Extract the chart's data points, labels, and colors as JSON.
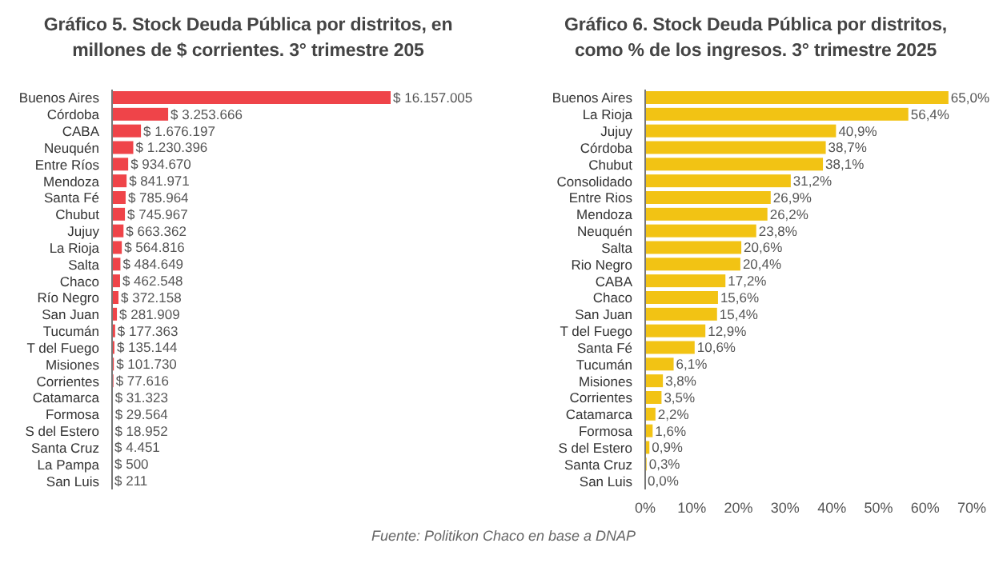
{
  "chart_data": [
    {
      "type": "bar",
      "orientation": "horizontal",
      "title": "Gráfico 5. Stock Deuda Pública por distritos, en millones de $ corrientes. 3° trimestre 205",
      "tick_labels": "y",
      "color": "#ef4449",
      "categories": [
        "Buenos Aires",
        "Córdoba",
        "CABA",
        "Neuquén",
        "Entre Ríos",
        "Mendoza",
        "Santa Fé",
        "Chubut",
        "Jujuy",
        "La Rioja",
        "Salta",
        "Chaco",
        "Río Negro",
        "San Juan",
        "Tucumán",
        "T del Fuego",
        "Misiones",
        "Corrientes",
        "Catamarca",
        "Formosa",
        "S del Estero",
        "Santa Cruz",
        "La Pampa",
        "San Luis"
      ],
      "values": [
        16157005,
        3253666,
        1676197,
        1230396,
        934670,
        841971,
        785964,
        745967,
        663362,
        564816,
        484649,
        462548,
        372158,
        281909,
        177363,
        135144,
        101730,
        77616,
        31323,
        29564,
        18952,
        4451,
        500,
        211
      ],
      "value_labels": [
        "$ 16.157.005",
        "$ 3.253.666",
        "$ 1.676.197",
        "$ 1.230.396",
        "$ 934.670",
        "$ 841.971",
        "$ 785.964",
        "$ 745.967",
        "$ 663.362",
        "$ 564.816",
        "$ 484.649",
        "$ 462.548",
        "$ 372.158",
        "$ 281.909",
        "$ 177.363",
        "$ 135.144",
        "$ 101.730",
        "$ 77.616",
        "$ 31.323",
        "$ 29.564",
        "$ 18.952",
        "$ 4.451",
        "$ 500",
        "$ 211"
      ],
      "annotations": [
        "Fuente: Politikon Chaco en base a DNAP"
      ]
    },
    {
      "type": "bar",
      "orientation": "horizontal",
      "title": "Gráfico 6. Stock Deuda Pública por distritos, como % de los ingresos. 3° trimestre 2025",
      "color": "#f2c314",
      "categories": [
        "Buenos Aires",
        "La Rioja",
        "Jujuy",
        "Córdoba",
        "Chubut",
        "Consolidado",
        "Entre Rios",
        "Mendoza",
        "Neuquén",
        "Salta",
        "Rio Negro",
        "CABA",
        "Chaco",
        "San Juan",
        "T del Fuego",
        "Santa Fé",
        "Tucumán",
        "Misiones",
        "Corrientes",
        "Catamarca",
        "Formosa",
        "S del Estero",
        "Santa Cruz",
        "San Luis"
      ],
      "values": [
        65.0,
        56.4,
        40.9,
        38.7,
        38.1,
        31.2,
        26.9,
        26.2,
        23.8,
        20.6,
        20.4,
        17.2,
        15.6,
        15.4,
        12.9,
        10.6,
        6.1,
        3.8,
        3.5,
        2.2,
        1.6,
        0.9,
        0.3,
        0.0
      ],
      "value_labels": [
        "65,0%",
        "56,4%",
        "40,9%",
        "38,7%",
        "38,1%",
        "31,2%",
        "26,9%",
        "26,2%",
        "23,8%",
        "20,6%",
        "20,4%",
        "17,2%",
        "15,6%",
        "15,4%",
        "12,9%",
        "10,6%",
        "6,1%",
        "3,8%",
        "3,5%",
        "2,2%",
        "1,6%",
        "0,9%",
        "0,3%",
        "0,0%"
      ],
      "xlim": [
        0,
        70
      ],
      "xticks": [
        {
          "value": 0,
          "label": "0%"
        },
        {
          "value": 10,
          "label": "10%"
        },
        {
          "value": 20,
          "label": "20%"
        },
        {
          "value": 30,
          "label": "30%"
        },
        {
          "value": 40,
          "label": "40%"
        },
        {
          "value": 50,
          "label": "50%"
        },
        {
          "value": 60,
          "label": "60%"
        },
        {
          "value": 70,
          "label": "70%"
        }
      ]
    }
  ]
}
